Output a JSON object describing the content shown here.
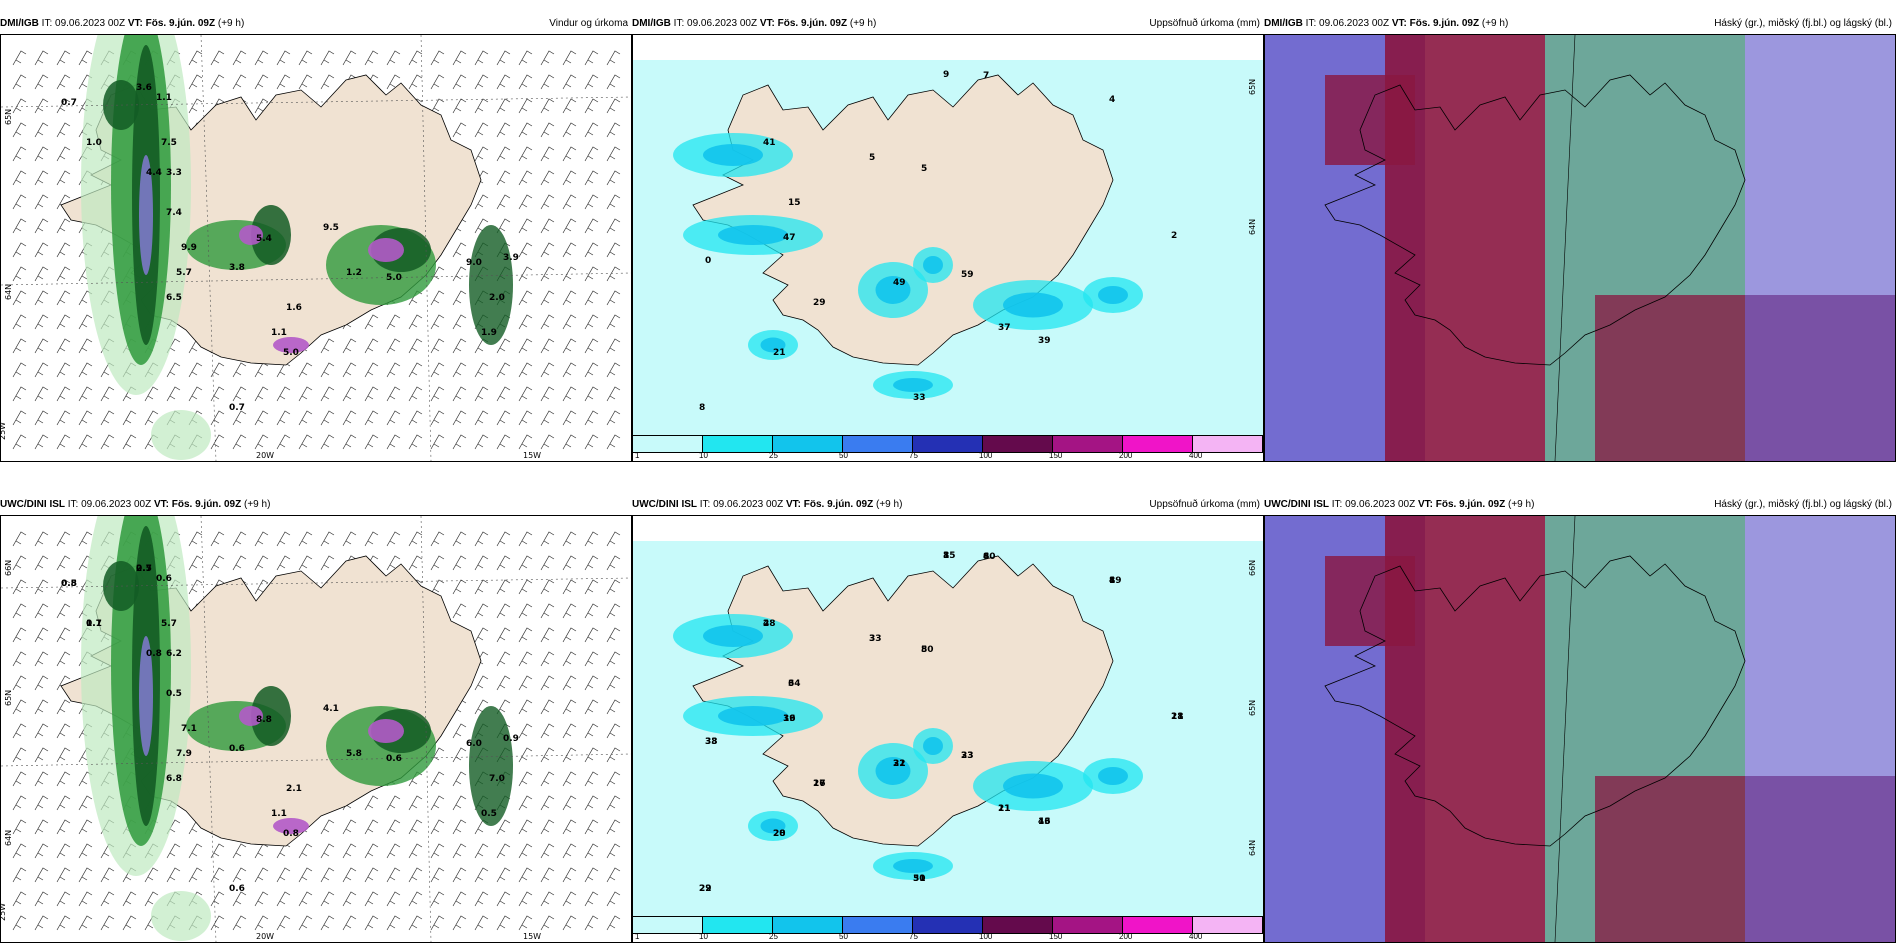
{
  "panels": [
    {
      "id": "p1",
      "model": "DMI/IGB",
      "it": "IT: 09.06.2023 00Z",
      "vt": "VT: Fös. 9.jún. 09Z",
      "lead": "(+9 h)",
      "title": "Vindur og úrkoma",
      "kind": "wind",
      "axis_labels": [
        "65N",
        "64N",
        "25W",
        "20W",
        "15W"
      ],
      "value_labels": [
        "0.7",
        "1.0",
        "3.6",
        "1.1",
        "7.5",
        "4.4",
        "3.3",
        "7.4",
        "9.9",
        "5.7",
        "6.5",
        "3.8",
        "5.4",
        "9.5",
        "1.2",
        "5.0",
        "9.0",
        "3.9",
        "1.6",
        "2.0",
        "1.1",
        "5.0",
        "1.9",
        "0.7"
      ]
    },
    {
      "id": "p2",
      "model": "DMI/IGB",
      "it": "IT: 09.06.2023 00Z",
      "vt": "VT: Fös. 9.jún. 09Z",
      "lead": "(+9 h)",
      "title": "Uppsöfnuð úrkoma (mm)",
      "kind": "precip",
      "axis_labels": [
        "65N",
        "64N"
      ],
      "value_labels": [
        "9",
        "7",
        "4",
        "41",
        "5",
        "5",
        "15",
        "47",
        "0",
        "2",
        "49",
        "59",
        "29",
        "37",
        "39",
        "21",
        "33",
        "8"
      ]
    },
    {
      "id": "p3",
      "model": "DMI/IGB",
      "it": "IT: 09.06.2023 00Z",
      "vt": "VT: Fös. 9.jún. 09Z",
      "lead": "(+9 h)",
      "title": "Háský (gr.), miðský (fj.bl.) og lágský (bl.)",
      "kind": "clouds"
    },
    {
      "id": "p4",
      "model": "UWC/DINI ISL",
      "it": "IT: 09.06.2023 00Z",
      "vt": "VT: Fös. 9.jún. 09Z",
      "lead": "(+9 h)",
      "title": "",
      "kind": "wind",
      "axis_labels": [
        "66N",
        "65N",
        "64N",
        "25W",
        "20W",
        "15W"
      ],
      "value_labels": [
        "0.5",
        "0.7",
        "0.7",
        "0.6",
        "5.7",
        "0.8",
        "6.2",
        "0.5",
        "7.1",
        "7.9",
        "6.8",
        "0.6",
        "8.8",
        "4.1",
        "5.8",
        "0.6",
        "6.0",
        "0.9",
        "2.1",
        "7.0",
        "1.1",
        "0.8",
        "0.5",
        "0.6",
        "0.8",
        "1.1",
        "2.5"
      ]
    },
    {
      "id": "p5",
      "model": "UWC/DINI ISL",
      "it": "IT: 09.06.2023 00Z",
      "vt": "VT: Fös. 9.jún. 09Z",
      "lead": "(+9 h)",
      "title": "Uppsöfnuð úrkoma (mm)",
      "kind": "precip",
      "axis_labels": [
        "66N",
        "65N",
        "64N"
      ],
      "value_labels": [
        "3",
        "4",
        "8",
        "2",
        "3",
        "5",
        "6",
        "39",
        "33",
        "18",
        "31",
        "23",
        "27",
        "11",
        "13",
        "20",
        "50",
        "22",
        "15",
        "60",
        "49",
        "48",
        "33",
        "80",
        "34",
        "16",
        "38",
        "21",
        "22",
        "33",
        "16",
        "21",
        "46",
        "28",
        "31",
        "29",
        "8",
        "8",
        "1",
        "2"
      ]
    },
    {
      "id": "p6",
      "model": "UWC/DINI ISL",
      "it": "IT: 09.06.2023 00Z",
      "vt": "VT: Fös. 9.jún. 09Z",
      "lead": "(+9 h)",
      "title": "Háský (gr.), miðský (fj.bl.) og lágský (bl.)",
      "kind": "clouds"
    }
  ],
  "colorbar": {
    "ticks": [
      "1",
      "10",
      "25",
      "50",
      "75",
      "100",
      "150",
      "200",
      "400"
    ],
    "colors": [
      "#c8fafa",
      "#22e6f0",
      "#12c4ec",
      "#3a7cf0",
      "#2430b4",
      "#640a4c",
      "#a41484",
      "#f014c8",
      "#f4b4f4"
    ]
  },
  "colors": {
    "land": "#f0e2d2",
    "sea_precip": "#c8fafa",
    "wind_dark_green": "#135c24",
    "wind_green": "#2f9a3c",
    "wind_light_green": "#bfeac0",
    "purple": "#b35ac8",
    "lavender": "#7c78c8",
    "cloud_maroon": "#8a1640",
    "cloud_blue": "#5a52c8",
    "cloud_teal": "#3c8a78"
  }
}
